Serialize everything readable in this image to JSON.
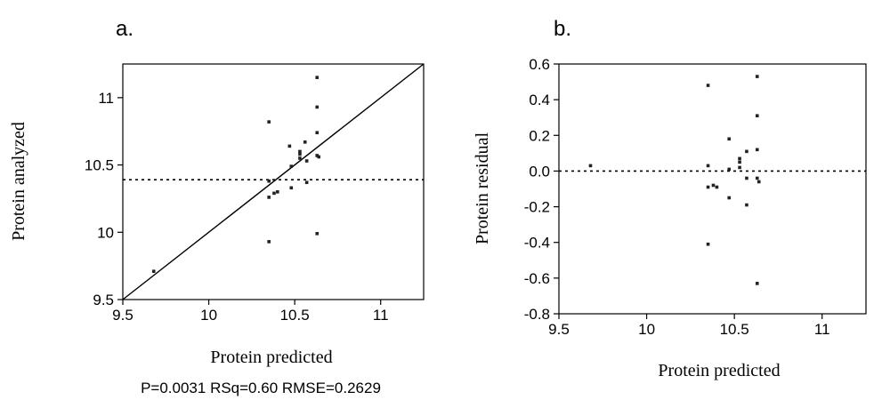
{
  "chart_data": [
    {
      "type": "scatter",
      "panel_label": "a.",
      "xlabel": "Protein predicted",
      "ylabel": "Protein analyzed",
      "xlim": [
        9.5,
        11.25
      ],
      "ylim": [
        9.5,
        11.25
      ],
      "xticks": [
        9.5,
        10,
        10.5,
        11
      ],
      "xtick_labels": [
        "9.5",
        "10",
        "10.5",
        "11"
      ],
      "yticks": [
        9.5,
        10,
        10.5,
        11
      ],
      "ytick_labels": [
        "9.5",
        "10",
        "10.5",
        "11"
      ],
      "mean_line_y": 10.39,
      "fit_line": [
        [
          9.5,
          9.5
        ],
        [
          11.25,
          11.25
        ]
      ],
      "stats_text": "P=0.0031 RSq=0.60 RMSE=0.2629",
      "points": [
        [
          9.68,
          9.71
        ],
        [
          10.35,
          10.82
        ],
        [
          10.35,
          10.38
        ],
        [
          10.35,
          10.26
        ],
        [
          10.35,
          9.93
        ],
        [
          10.38,
          10.29
        ],
        [
          10.4,
          10.3
        ],
        [
          10.47,
          10.64
        ],
        [
          10.48,
          10.49
        ],
        [
          10.48,
          10.33
        ],
        [
          10.53,
          10.6
        ],
        [
          10.53,
          10.58
        ],
        [
          10.53,
          10.55
        ],
        [
          10.56,
          10.67
        ],
        [
          10.57,
          10.53
        ],
        [
          10.57,
          10.37
        ],
        [
          10.63,
          11.15
        ],
        [
          10.63,
          10.93
        ],
        [
          10.63,
          10.74
        ],
        [
          10.63,
          10.57
        ],
        [
          10.64,
          10.56
        ],
        [
          10.63,
          9.99
        ]
      ]
    },
    {
      "type": "scatter",
      "panel_label": "b.",
      "xlabel": "Protein predicted",
      "ylabel": "Protein residual",
      "xlim": [
        9.5,
        11.25
      ],
      "ylim": [
        -0.8,
        0.6
      ],
      "xticks": [
        9.5,
        10,
        10.5,
        11
      ],
      "xtick_labels": [
        "9.5",
        "10",
        "10.5",
        "11"
      ],
      "yticks": [
        0.6,
        0.4,
        0.2,
        0.0,
        -0.2,
        -0.4,
        -0.6,
        -0.8
      ],
      "ytick_labels": [
        "0.6",
        "0.4",
        "0.2",
        "0.0",
        "-0.2",
        "-0.4",
        "-0.6",
        "-0.8"
      ],
      "zero_line_y": 0.0,
      "points": [
        [
          9.68,
          0.03
        ],
        [
          10.35,
          0.48
        ],
        [
          10.35,
          0.03
        ],
        [
          10.35,
          -0.09
        ],
        [
          10.35,
          -0.41
        ],
        [
          10.38,
          -0.08
        ],
        [
          10.4,
          -0.09
        ],
        [
          10.47,
          0.18
        ],
        [
          10.47,
          0.01
        ],
        [
          10.47,
          -0.15
        ],
        [
          10.53,
          0.07
        ],
        [
          10.53,
          0.05
        ],
        [
          10.53,
          0.02
        ],
        [
          10.57,
          0.11
        ],
        [
          10.57,
          -0.04
        ],
        [
          10.57,
          -0.19
        ],
        [
          10.63,
          0.53
        ],
        [
          10.63,
          0.31
        ],
        [
          10.63,
          0.12
        ],
        [
          10.63,
          -0.04
        ],
        [
          10.64,
          -0.06
        ],
        [
          10.63,
          -0.63
        ]
      ]
    }
  ]
}
